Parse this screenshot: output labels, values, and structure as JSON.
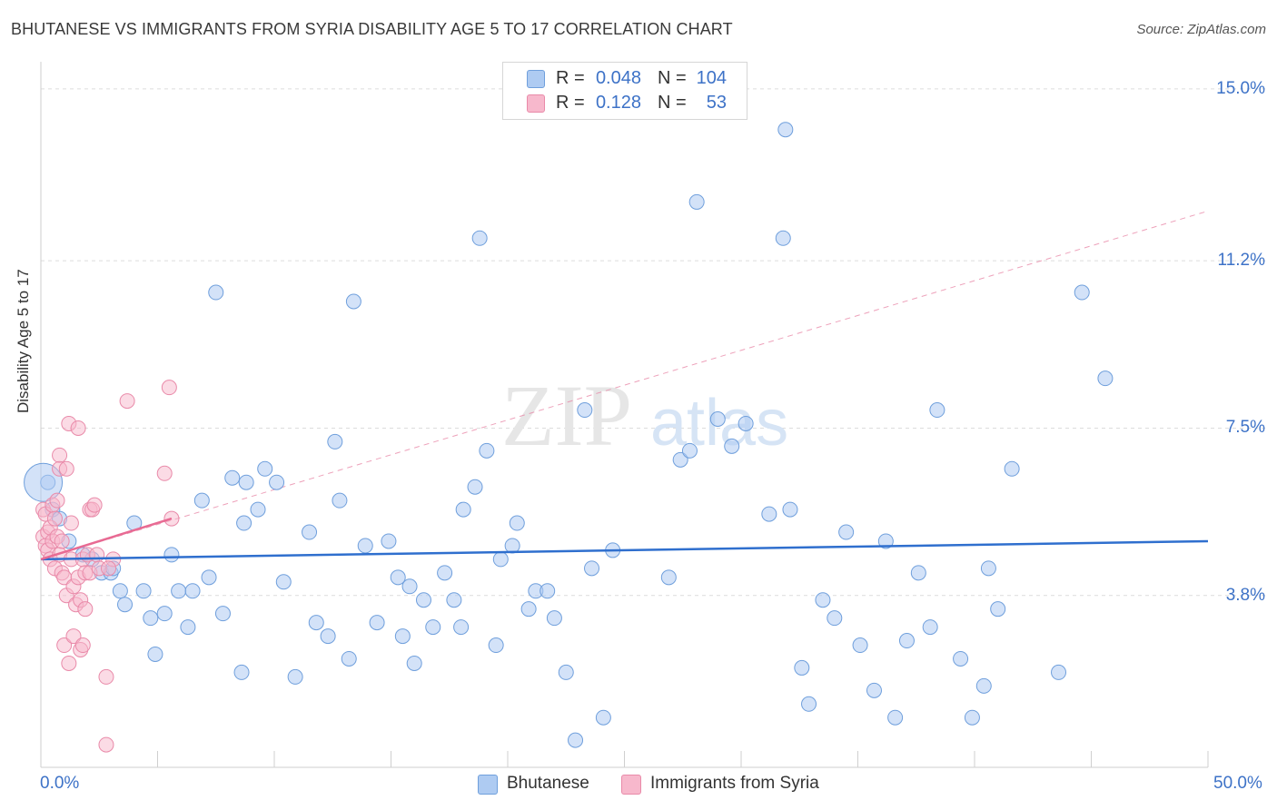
{
  "header": {
    "title": "BHUTANESE VS IMMIGRANTS FROM SYRIA DISABILITY AGE 5 TO 17 CORRELATION CHART",
    "source": "Source: ZipAtlas.com"
  },
  "watermark": {
    "zip": "ZIP",
    "atlas": "atlas"
  },
  "legend": {
    "rows": [
      {
        "r_label": "R =",
        "r_value": "0.048",
        "n_label": "N =",
        "n_value": "104",
        "color": "#aecbf2"
      },
      {
        "r_label": "R =",
        "r_value": "0.128",
        "n_label": "N =",
        "n_value": "53",
        "color": "#f7b8cc"
      }
    ]
  },
  "bottom_legend": {
    "bhutanese": "Bhutanese",
    "syria": "Immigrants from Syria"
  },
  "colors": {
    "blue_fill": "#aecbf2",
    "blue_stroke": "#6f9fdc",
    "blue_line": "#2f6fce",
    "pink_fill": "#f7b8cc",
    "pink_stroke": "#e98aa9",
    "pink_line": "#e86a93",
    "axis_text": "#3d72c7"
  },
  "chart_data": {
    "type": "scatter",
    "title": "BHUTANESE VS IMMIGRANTS FROM SYRIA DISABILITY AGE 5 TO 17 CORRELATION CHART",
    "xlabel": "",
    "ylabel": "Disability Age 5 to 17",
    "xlim": [
      0,
      50
    ],
    "ylim": [
      0,
      15.4
    ],
    "x_tick_labels": [
      "0.0%",
      "50.0%"
    ],
    "y_ticks": [
      3.8,
      7.5,
      11.2,
      15.0
    ],
    "y_tick_labels": [
      "3.8%",
      "7.5%",
      "11.2%",
      "15.0%"
    ],
    "grid": "horizontal dashed",
    "legend_placement": "top-center",
    "series": [
      {
        "name": "Bhutanese",
        "r": 0.048,
        "n": 104,
        "trend": {
          "x": [
            0,
            50
          ],
          "y": [
            4.6,
            5.0
          ]
        },
        "points": [
          [
            0.3,
            6.3
          ],
          [
            0.5,
            5.7
          ],
          [
            0.8,
            5.5
          ],
          [
            1.2,
            5.0
          ],
          [
            1.8,
            4.7
          ],
          [
            2.2,
            4.6
          ],
          [
            2.6,
            4.3
          ],
          [
            3.0,
            4.3
          ],
          [
            3.1,
            4.4
          ],
          [
            3.4,
            3.9
          ],
          [
            3.6,
            3.6
          ],
          [
            4.0,
            5.4
          ],
          [
            4.4,
            3.9
          ],
          [
            4.7,
            3.3
          ],
          [
            4.9,
            2.5
          ],
          [
            5.3,
            3.4
          ],
          [
            5.6,
            4.7
          ],
          [
            5.9,
            3.9
          ],
          [
            6.3,
            3.1
          ],
          [
            6.5,
            3.9
          ],
          [
            6.9,
            5.9
          ],
          [
            7.2,
            4.2
          ],
          [
            7.5,
            10.5
          ],
          [
            7.8,
            3.4
          ],
          [
            8.2,
            6.4
          ],
          [
            8.6,
            2.1
          ],
          [
            8.7,
            5.4
          ],
          [
            8.8,
            6.3
          ],
          [
            9.3,
            5.7
          ],
          [
            9.6,
            6.6
          ],
          [
            10.1,
            6.3
          ],
          [
            10.4,
            4.1
          ],
          [
            10.9,
            2.0
          ],
          [
            11.5,
            5.2
          ],
          [
            11.8,
            3.2
          ],
          [
            12.3,
            2.9
          ],
          [
            12.6,
            7.2
          ],
          [
            12.8,
            5.9
          ],
          [
            13.2,
            2.4
          ],
          [
            13.4,
            10.3
          ],
          [
            13.9,
            4.9
          ],
          [
            14.4,
            3.2
          ],
          [
            14.9,
            5.0
          ],
          [
            15.3,
            4.2
          ],
          [
            15.5,
            2.9
          ],
          [
            15.8,
            4.0
          ],
          [
            16.0,
            2.3
          ],
          [
            16.4,
            3.7
          ],
          [
            16.8,
            3.1
          ],
          [
            17.3,
            4.3
          ],
          [
            17.7,
            3.7
          ],
          [
            18.0,
            3.1
          ],
          [
            18.1,
            5.7
          ],
          [
            18.6,
            6.2
          ],
          [
            18.8,
            11.7
          ],
          [
            19.1,
            7.0
          ],
          [
            19.5,
            2.7
          ],
          [
            19.7,
            4.6
          ],
          [
            20.2,
            4.9
          ],
          [
            20.4,
            5.4
          ],
          [
            20.9,
            3.5
          ],
          [
            21.2,
            3.9
          ],
          [
            21.7,
            3.9
          ],
          [
            22.0,
            3.3
          ],
          [
            22.5,
            2.1
          ],
          [
            22.9,
            0.6
          ],
          [
            23.3,
            7.9
          ],
          [
            23.6,
            4.4
          ],
          [
            24.1,
            1.1
          ],
          [
            24.5,
            4.8
          ],
          [
            26.9,
            4.2
          ],
          [
            27.4,
            6.8
          ],
          [
            27.8,
            7.0
          ],
          [
            28.1,
            12.5
          ],
          [
            29.0,
            7.7
          ],
          [
            29.6,
            7.1
          ],
          [
            30.2,
            7.6
          ],
          [
            31.2,
            5.6
          ],
          [
            31.8,
            11.7
          ],
          [
            31.9,
            14.1
          ],
          [
            32.1,
            5.7
          ],
          [
            32.6,
            2.2
          ],
          [
            32.9,
            1.4
          ],
          [
            33.5,
            3.7
          ],
          [
            34.0,
            3.3
          ],
          [
            34.5,
            5.2
          ],
          [
            35.1,
            2.7
          ],
          [
            35.7,
            1.7
          ],
          [
            36.2,
            5.0
          ],
          [
            36.6,
            1.1
          ],
          [
            37.1,
            2.8
          ],
          [
            37.6,
            4.3
          ],
          [
            38.1,
            3.1
          ],
          [
            38.4,
            7.9
          ],
          [
            39.4,
            2.4
          ],
          [
            39.9,
            1.1
          ],
          [
            40.4,
            1.8
          ],
          [
            40.6,
            4.4
          ],
          [
            41.0,
            3.5
          ],
          [
            41.6,
            6.6
          ],
          [
            43.6,
            2.1
          ],
          [
            44.6,
            10.5
          ],
          [
            45.6,
            8.6
          ]
        ]
      },
      {
        "name": "Immigrants from Syria",
        "r": 0.128,
        "n": 53,
        "trend": {
          "x": [
            0,
            5.6
          ],
          "y": [
            4.6,
            5.5
          ]
        },
        "trend_extended": {
          "x": [
            0,
            50
          ],
          "y": [
            4.6,
            12.3
          ]
        },
        "points": [
          [
            0.1,
            5.7
          ],
          [
            0.1,
            5.1
          ],
          [
            0.2,
            5.6
          ],
          [
            0.2,
            4.9
          ],
          [
            0.3,
            5.2
          ],
          [
            0.3,
            4.8
          ],
          [
            0.4,
            5.3
          ],
          [
            0.4,
            4.6
          ],
          [
            0.5,
            5.0
          ],
          [
            0.5,
            5.8
          ],
          [
            0.6,
            4.4
          ],
          [
            0.6,
            5.5
          ],
          [
            0.7,
            5.9
          ],
          [
            0.7,
            5.1
          ],
          [
            0.8,
            4.7
          ],
          [
            0.8,
            6.9
          ],
          [
            0.8,
            6.6
          ],
          [
            0.9,
            4.3
          ],
          [
            0.9,
            5.0
          ],
          [
            1.0,
            2.7
          ],
          [
            1.0,
            4.2
          ],
          [
            1.1,
            3.8
          ],
          [
            1.1,
            6.6
          ],
          [
            1.2,
            7.6
          ],
          [
            1.2,
            2.3
          ],
          [
            1.3,
            4.6
          ],
          [
            1.3,
            5.4
          ],
          [
            1.4,
            2.9
          ],
          [
            1.4,
            4.0
          ],
          [
            1.5,
            3.6
          ],
          [
            1.6,
            4.2
          ],
          [
            1.6,
            7.5
          ],
          [
            1.7,
            2.6
          ],
          [
            1.7,
            3.7
          ],
          [
            1.8,
            4.6
          ],
          [
            1.8,
            2.7
          ],
          [
            1.9,
            3.5
          ],
          [
            1.9,
            4.3
          ],
          [
            2.0,
            4.7
          ],
          [
            2.1,
            4.3
          ],
          [
            2.1,
            5.7
          ],
          [
            2.2,
            5.7
          ],
          [
            2.3,
            5.8
          ],
          [
            2.4,
            4.7
          ],
          [
            2.5,
            4.4
          ],
          [
            2.8,
            2.0
          ],
          [
            2.8,
            0.5
          ],
          [
            3.1,
            4.6
          ],
          [
            3.7,
            8.1
          ],
          [
            5.3,
            6.5
          ],
          [
            5.5,
            8.4
          ],
          [
            5.6,
            5.5
          ],
          [
            2.9,
            4.4
          ]
        ]
      }
    ]
  }
}
